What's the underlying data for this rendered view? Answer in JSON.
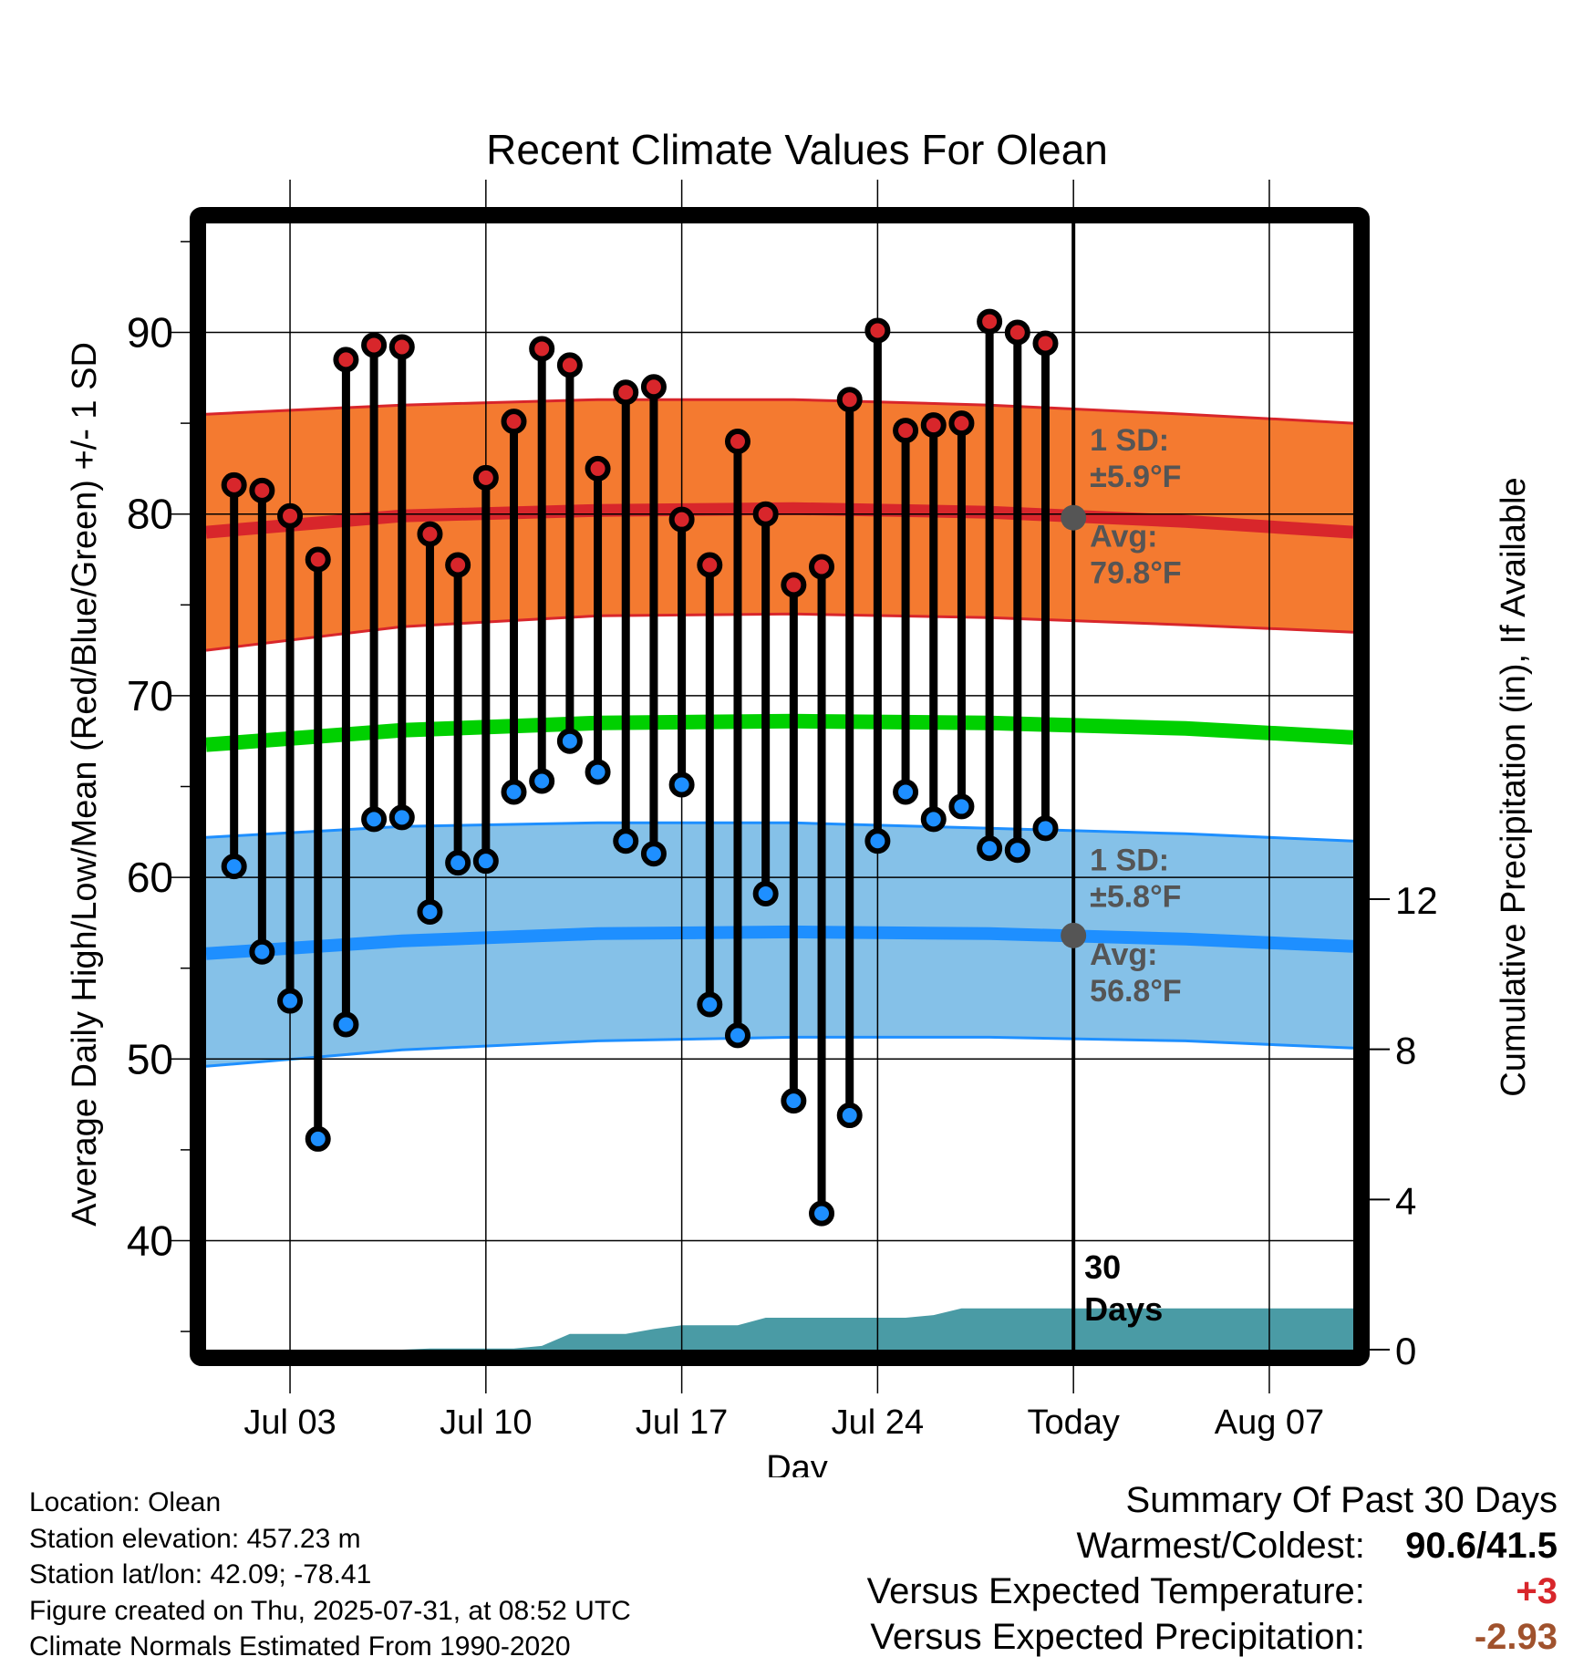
{
  "chart_data": {
    "type": "line",
    "title": "Recent Climate Values For Olean",
    "xlabel": "Day",
    "ylabel_left": "Average Daily High/Low/Mean (Red/Blue/Green) +/- 1 SD",
    "ylabel_right": "Cumulative Precipitation (in), If Available",
    "x_start": "2025-06-30",
    "x_end": "2025-08-10",
    "ylim_left": [
      34,
      96
    ],
    "ylim_right": [
      0,
      30
    ],
    "x_ticks": [
      {
        "date": "2025-07-03",
        "label": "Jul 03"
      },
      {
        "date": "2025-07-10",
        "label": "Jul 10"
      },
      {
        "date": "2025-07-17",
        "label": "Jul 17"
      },
      {
        "date": "2025-07-24",
        "label": "Jul 24"
      },
      {
        "date": "2025-07-31",
        "label": "Today"
      },
      {
        "date": "2025-08-07",
        "label": "Aug 07"
      }
    ],
    "y_ticks_left": [
      40,
      50,
      60,
      70,
      80,
      90
    ],
    "y_ticks_right": [
      0,
      4,
      8,
      12
    ],
    "grid": true,
    "daily": {
      "dates": [
        "2025-07-01",
        "2025-07-02",
        "2025-07-03",
        "2025-07-04",
        "2025-07-05",
        "2025-07-06",
        "2025-07-07",
        "2025-07-08",
        "2025-07-09",
        "2025-07-10",
        "2025-07-11",
        "2025-07-12",
        "2025-07-13",
        "2025-07-14",
        "2025-07-15",
        "2025-07-16",
        "2025-07-17",
        "2025-07-18",
        "2025-07-19",
        "2025-07-20",
        "2025-07-21",
        "2025-07-22",
        "2025-07-23",
        "2025-07-24",
        "2025-07-25",
        "2025-07-26",
        "2025-07-27",
        "2025-07-28",
        "2025-07-29",
        "2025-07-30"
      ],
      "highs": [
        81.6,
        81.3,
        79.9,
        77.5,
        88.5,
        89.3,
        89.2,
        78.9,
        77.2,
        82.0,
        85.1,
        89.1,
        88.2,
        82.5,
        86.7,
        87.0,
        79.7,
        77.2,
        84.0,
        80.0,
        76.1,
        77.1,
        86.3,
        90.1,
        84.6,
        84.9,
        85.0,
        90.6,
        90.0,
        89.4
      ],
      "lows": [
        60.6,
        55.9,
        53.2,
        45.6,
        51.9,
        63.2,
        63.3,
        58.1,
        60.8,
        60.9,
        64.7,
        65.3,
        67.5,
        65.8,
        62.0,
        61.3,
        65.1,
        53.0,
        51.3,
        59.1,
        47.7,
        41.5,
        46.9,
        62.0,
        64.7,
        63.2,
        63.9,
        61.6,
        61.5,
        62.7
      ]
    },
    "normals": {
      "dates": [
        "2025-06-30",
        "2025-07-07",
        "2025-07-14",
        "2025-07-21",
        "2025-07-28",
        "2025-08-04",
        "2025-08-10"
      ],
      "high_avg": [
        79.0,
        79.9,
        80.2,
        80.3,
        80.1,
        79.6,
        79.0
      ],
      "high_sd_upper": [
        85.5,
        86.0,
        86.3,
        86.3,
        86.0,
        85.5,
        85.0
      ],
      "high_sd_lower": [
        72.5,
        73.8,
        74.4,
        74.5,
        74.3,
        73.9,
        73.5
      ],
      "mean": [
        67.3,
        68.1,
        68.5,
        68.6,
        68.5,
        68.2,
        67.7
      ],
      "low_avg": [
        55.8,
        56.5,
        56.9,
        57.0,
        56.9,
        56.6,
        56.2
      ],
      "low_sd_upper": [
        62.2,
        62.8,
        63.0,
        63.0,
        62.7,
        62.4,
        62.0
      ],
      "low_sd_lower": [
        49.6,
        50.5,
        51.0,
        51.2,
        51.2,
        51.0,
        50.6
      ]
    },
    "precip": {
      "dates": [
        "2025-06-30",
        "2025-07-07",
        "2025-07-08",
        "2025-07-11",
        "2025-07-12",
        "2025-07-13",
        "2025-07-15",
        "2025-07-16",
        "2025-07-17",
        "2025-07-19",
        "2025-07-20",
        "2025-07-25",
        "2025-07-26",
        "2025-07-27",
        "2025-08-10"
      ],
      "values": [
        0.0,
        0.0,
        0.03,
        0.03,
        0.1,
        0.42,
        0.42,
        0.55,
        0.65,
        0.65,
        0.85,
        0.85,
        0.92,
        1.1,
        1.1
      ]
    },
    "annotations": {
      "high_sd": {
        "line1": "1 SD:",
        "line2": "±5.9°F"
      },
      "high_avg": {
        "line1": "Avg:",
        "line2": "79.8°F",
        "value": 79.8
      },
      "low_sd": {
        "line1": "1 SD:",
        "line2": "±5.8°F"
      },
      "low_avg": {
        "line1": "Avg:",
        "line2": "56.8°F",
        "value": 56.8
      },
      "days": {
        "line1": "30",
        "line2": "Days"
      }
    },
    "colors": {
      "high_band": "#f47a30",
      "high_line": "#d8262b",
      "low_band": "#85c1e8",
      "low_line": "#1e8fff",
      "mean_line": "#00d000",
      "precip_fill": "#4a9ba5",
      "high_dot": "#d8262b",
      "low_dot": "#1e8fff",
      "annotation_text": "#555555"
    }
  },
  "footer": {
    "location": "Location: Olean",
    "elevation": "Station elevation: 457.23 m",
    "latlon": "Station lat/lon: 42.09; -78.41",
    "created": "Figure created on Thu, 2025-07-31, at 08:52 UTC",
    "normals": "Climate Normals Estimated From 1990-2020"
  },
  "summary": {
    "title": "Summary Of Past 30 Days",
    "warmest_label": "Warmest/Coldest:",
    "warmest_value": "90.6/41.5",
    "temp_label": "Versus Expected Temperature:",
    "temp_value": "+3",
    "precip_label": "Versus Expected Precipitation:",
    "precip_value": "-2.93"
  }
}
